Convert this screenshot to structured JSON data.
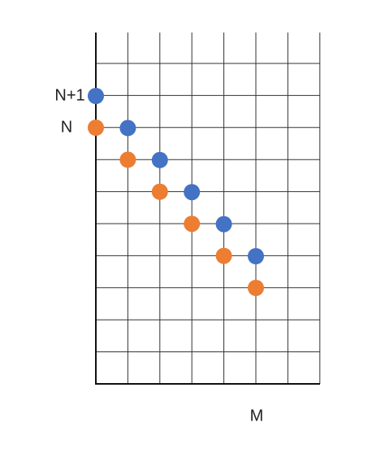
{
  "labels": {
    "row_upper": "N+1",
    "row_lower": "N",
    "column": "M"
  }
}
